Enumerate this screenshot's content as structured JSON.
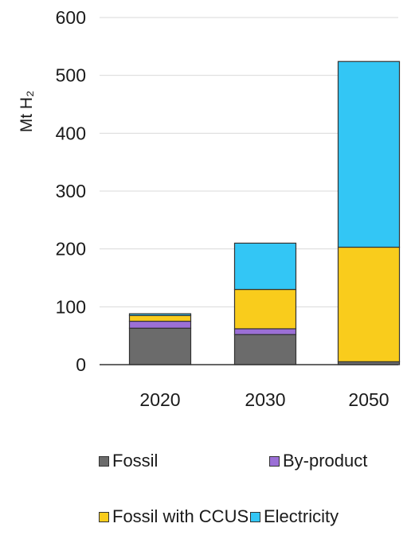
{
  "chart_data": {
    "type": "bar",
    "stacked": true,
    "categories": [
      "2020",
      "2030",
      "2050"
    ],
    "ylabel": "Mt H₂",
    "ylim": [
      0,
      600
    ],
    "yticks": [
      0,
      100,
      200,
      300,
      400,
      500,
      600
    ],
    "grid": true,
    "legend_position": "bottom",
    "series": [
      {
        "name": "Fossil",
        "color": "#6b6b6b",
        "values": [
          63,
          52,
          5
        ]
      },
      {
        "name": "By-product",
        "color": "#9b6fd6",
        "values": [
          12,
          10,
          0
        ]
      },
      {
        "name": "Fossil with CCUS",
        "color": "#f9cc1c",
        "values": [
          10,
          68,
          198
        ]
      },
      {
        "name": "Electricity",
        "color": "#33c6f5",
        "values": [
          3,
          80,
          321
        ]
      }
    ]
  }
}
